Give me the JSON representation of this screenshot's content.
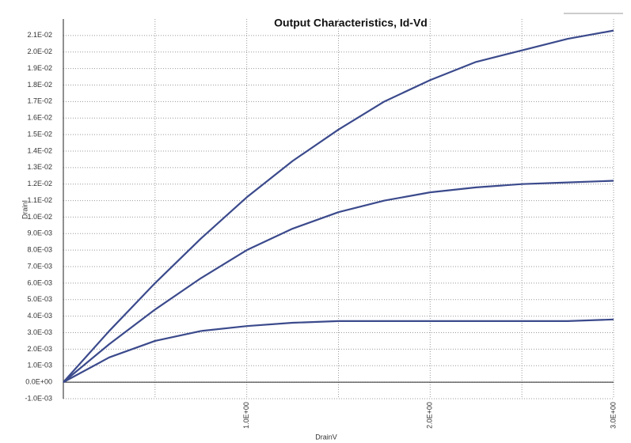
{
  "chart_data": {
    "type": "line",
    "title": "Output Characteristics, Id-Vd",
    "x_label": "DrainV",
    "y_label": "DrainI",
    "x": [
      0,
      0.25,
      0.5,
      0.75,
      1,
      1.25,
      1.5,
      1.75,
      2,
      2.25,
      2.5,
      2.75,
      3
    ],
    "series": [
      {
        "color": "#3b4a8c",
        "values": [
          0,
          0.0031,
          0.006,
          0.0087,
          0.0112,
          0.0134,
          0.0153,
          0.017,
          0.0183,
          0.0194,
          0.0201,
          0.0208,
          0.0213
        ]
      },
      {
        "color": "#3b4a8c",
        "values": [
          0,
          0.0023,
          0.0044,
          0.0063,
          0.008,
          0.0093,
          0.0103,
          0.011,
          0.0115,
          0.0118,
          0.012,
          0.0121,
          0.0122
        ]
      },
      {
        "color": "#3b4a8c",
        "values": [
          0,
          0.0015,
          0.0025,
          0.0031,
          0.0034,
          0.0036,
          0.0037,
          0.0037,
          0.0037,
          0.0037,
          0.0037,
          0.0037,
          0.0038
        ]
      }
    ],
    "xlim": [
      0,
      3
    ],
    "ylim": [
      -0.001,
      0.022
    ],
    "xticks": [
      {
        "value": 1,
        "label": "1.0E+00"
      },
      {
        "value": 2,
        "label": "2.0E+00"
      },
      {
        "value": 3,
        "label": "3.0E+00"
      }
    ],
    "x_minor_grid": [
      0.5,
      1.5,
      2.5
    ],
    "yticks": [
      {
        "value": -0.001,
        "label": "-1.0E-03"
      },
      {
        "value": 0,
        "label": "0.0E+00"
      },
      {
        "value": 0.001,
        "label": "1.0E-03"
      },
      {
        "value": 0.002,
        "label": "2.0E-03"
      },
      {
        "value": 0.003,
        "label": "3.0E-03"
      },
      {
        "value": 0.004,
        "label": "4.0E-03"
      },
      {
        "value": 0.005,
        "label": "5.0E-03"
      },
      {
        "value": 0.006,
        "label": "6.0E-03"
      },
      {
        "value": 0.007,
        "label": "7.0E-03"
      },
      {
        "value": 0.008,
        "label": "8.0E-03"
      },
      {
        "value": 0.009,
        "label": "9.0E-03"
      },
      {
        "value": 0.01,
        "label": "1.0E-02"
      },
      {
        "value": 0.011,
        "label": "1.1E-02"
      },
      {
        "value": 0.012,
        "label": "1.2E-02"
      },
      {
        "value": 0.013,
        "label": "1.3E-02"
      },
      {
        "value": 0.014,
        "label": "1.4E-02"
      },
      {
        "value": 0.015,
        "label": "1.5E-02"
      },
      {
        "value": 0.016,
        "label": "1.6E-02"
      },
      {
        "value": 0.017,
        "label": "1.7E-02"
      },
      {
        "value": 0.018,
        "label": "1.8E-02"
      },
      {
        "value": 0.019,
        "label": "1.9E-02"
      },
      {
        "value": 0.02,
        "label": "2.0E-02"
      },
      {
        "value": 0.021,
        "label": "2.1E-02"
      }
    ],
    "grid": true
  }
}
